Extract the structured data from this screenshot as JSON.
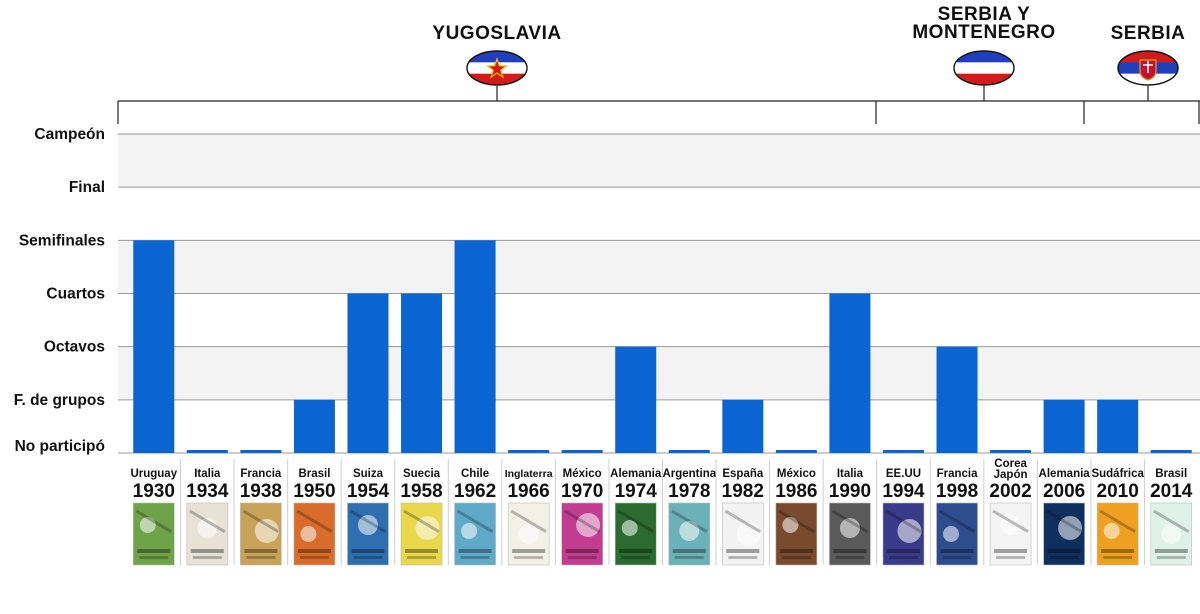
{
  "chart_data": {
    "type": "bar",
    "y_levels": [
      "No participó",
      "F. de grupos",
      "Octavos",
      "Cuartos",
      "Semifinales",
      "Final",
      "Campeón"
    ],
    "categories": [
      {
        "host": "Uruguay",
        "year": "1930"
      },
      {
        "host": "Italia",
        "year": "1934"
      },
      {
        "host": "Francia",
        "year": "1938"
      },
      {
        "host": "Brasil",
        "year": "1950"
      },
      {
        "host": "Suiza",
        "year": "1954"
      },
      {
        "host": "Suecia",
        "year": "1958"
      },
      {
        "host": "Chile",
        "year": "1962"
      },
      {
        "host": "Inglaterra",
        "year": "1966"
      },
      {
        "host": "México",
        "year": "1970"
      },
      {
        "host": "Alemania",
        "year": "1974"
      },
      {
        "host": "Argentina",
        "year": "1978"
      },
      {
        "host": "España",
        "year": "1982"
      },
      {
        "host": "México",
        "year": "1986"
      },
      {
        "host": "Italia",
        "year": "1990"
      },
      {
        "host": "EE.UU",
        "year": "1994"
      },
      {
        "host": "Francia",
        "year": "1998"
      },
      {
        "host": "Corea\nJapón",
        "year": "2002"
      },
      {
        "host": "Alemania",
        "year": "2006"
      },
      {
        "host": "Sudáfrica",
        "year": "2010"
      },
      {
        "host": "Brasil",
        "year": "2014"
      }
    ],
    "values": [
      4,
      0,
      0,
      1,
      3,
      3,
      4,
      0,
      0,
      2,
      0,
      1,
      0,
      3,
      0,
      2,
      0,
      1,
      1,
      0
    ],
    "ylim": [
      0,
      6
    ],
    "bar_color": "#0a64d2",
    "eras": [
      {
        "name": "YUGOSLAVIA",
        "start": 0,
        "end": 13,
        "flag": "yugoslavia-flag"
      },
      {
        "name": "SERBIA Y\nMONTENEGRO",
        "start": 14,
        "end": 17,
        "flag": "serbia-montenegro-flag"
      },
      {
        "name": "SERBIA",
        "start": 18,
        "end": 19,
        "flag": "serbia-flag"
      }
    ],
    "poster_icons": [
      "poster-1930-icon",
      "poster-1934-icon",
      "poster-1938-icon",
      "poster-1950-icon",
      "poster-1954-icon",
      "poster-1958-icon",
      "poster-1962-icon",
      "poster-1966-icon",
      "poster-1970-icon",
      "poster-1974-icon",
      "poster-1978-icon",
      "poster-1982-icon",
      "poster-1986-icon",
      "poster-1990-icon",
      "poster-1994-icon",
      "poster-1998-icon",
      "poster-2002-icon",
      "poster-2006-icon",
      "poster-2010-icon",
      "poster-2014-icon"
    ],
    "poster_colors": [
      "#6fa34a",
      "#e8e2d6",
      "#c9a35a",
      "#d96c2a",
      "#2f6fb0",
      "#e9d84a",
      "#5fa9c9",
      "#f3f0e6",
      "#c23c8f",
      "#2b6b2f",
      "#6bb1b8",
      "#f2f2f2",
      "#7a4a2e",
      "#5a5a5a",
      "#3a3a8a",
      "#2e4d8f",
      "#f4f4f4",
      "#0f2f5f",
      "#f0a020",
      "#dff2e8"
    ]
  }
}
